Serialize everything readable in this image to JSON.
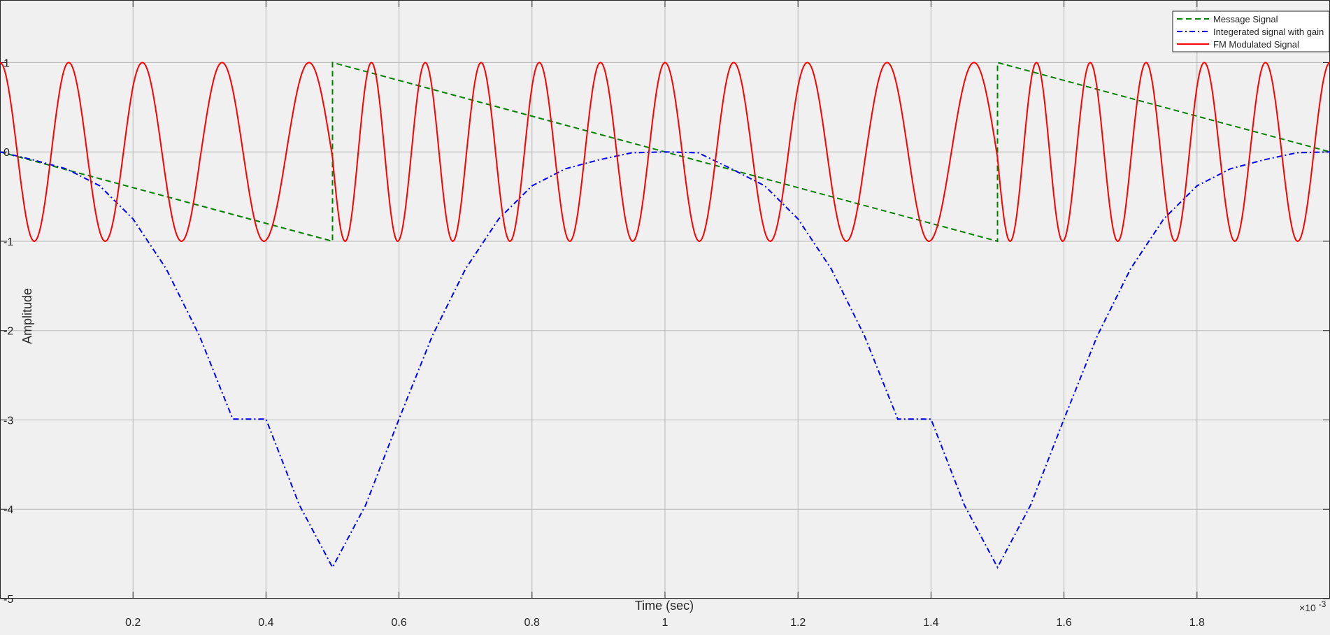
{
  "chart_data": {
    "type": "line",
    "xlabel": "Time (sec)",
    "ylabel": "Amplitude",
    "x_exponent_label": "×10",
    "x_exponent_power": "-3",
    "xlim": [
      0,
      0.002
    ],
    "ylim": [
      -5,
      1.7
    ],
    "grid": true,
    "legend_position": "top-right",
    "xticks": [
      {
        "value": 0.0002,
        "label": "0.2"
      },
      {
        "value": 0.0004,
        "label": "0.4"
      },
      {
        "value": 0.0006,
        "label": "0.6"
      },
      {
        "value": 0.0008,
        "label": "0.8"
      },
      {
        "value": 0.001,
        "label": "1"
      },
      {
        "value": 0.0012,
        "label": "1.2"
      },
      {
        "value": 0.0014,
        "label": "1.4"
      },
      {
        "value": 0.0016,
        "label": "1.6"
      },
      {
        "value": 0.0018,
        "label": "1.8"
      }
    ],
    "yticks": [
      {
        "value": 1,
        "label": "1"
      },
      {
        "value": 0,
        "label": "0"
      },
      {
        "value": -1,
        "label": "-1"
      },
      {
        "value": -2,
        "label": "-2"
      },
      {
        "value": -3,
        "label": "-3"
      },
      {
        "value": -4,
        "label": "-4"
      },
      {
        "value": -5,
        "label": "-5"
      }
    ],
    "series": [
      {
        "name": "Message Signal",
        "color": "#008000",
        "dash": "dashed",
        "x": [
          0,
          0.0005,
          0.0005,
          0.0015,
          0.0015,
          0.002
        ],
        "y": [
          0,
          -1,
          1,
          -1,
          1,
          0
        ]
      },
      {
        "name": "Integerated signal with gain",
        "color": "#0000ff",
        "dash": "dashdot",
        "x": [
          0,
          5e-05,
          0.0001,
          0.00015,
          0.0002,
          0.00025,
          0.0003,
          0.00035,
          0.0004,
          0.00045,
          0.0005,
          0.00055,
          0.0006,
          0.00065,
          0.0007,
          0.00075,
          0.0008,
          0.00085,
          0.0009,
          0.00095,
          0.001,
          0.00105,
          0.0011,
          0.00115,
          0.0012,
          0.00125,
          0.0013,
          0.00135,
          0.0014,
          0.00145,
          0.0015,
          0.00155,
          0.0016,
          0.00165,
          0.0017,
          0.00175,
          0.0018,
          0.00185,
          0.0019,
          0.00195,
          0.002
        ],
        "y": [
          0,
          -0.09,
          -0.19,
          -0.38,
          -0.75,
          -1.31,
          -2.06,
          -2.99,
          -2.99,
          -3.95,
          -4.65,
          -3.95,
          -2.99,
          -2.06,
          -1.31,
          -0.75,
          -0.38,
          -0.19,
          -0.09,
          -0.01,
          0,
          -0.01,
          -0.19,
          -0.38,
          -0.75,
          -1.31,
          -2.06,
          -2.99,
          -2.99,
          -3.95,
          -4.65,
          -3.95,
          -2.99,
          -2.06,
          -1.31,
          -0.75,
          -0.38,
          -0.19,
          -0.09,
          -0.01,
          0
        ]
      },
      {
        "name": "FM Modulated Signal",
        "color": "#ff0000",
        "dash": "solid",
        "carrier_frequency_hz": 10000,
        "x": [
          0,
          0.0001,
          0.0002,
          0.0003,
          0.0004,
          0.0005,
          0.0006,
          0.0007,
          0.0008,
          0.0009,
          0.001,
          0.0011,
          0.0012,
          0.0013,
          0.0014,
          0.0015,
          0.0016,
          0.0017,
          0.0018,
          0.0019,
          0.002
        ],
        "phase_dev_y": [
          0,
          -0.19,
          -0.75,
          -1.69,
          -2.99,
          -4.65,
          -2.99,
          -1.69,
          -0.75,
          -0.19,
          0,
          -0.19,
          -0.75,
          -1.69,
          -2.99,
          -4.65,
          -2.99,
          -1.69,
          -0.75,
          -0.19,
          0
        ]
      }
    ]
  }
}
